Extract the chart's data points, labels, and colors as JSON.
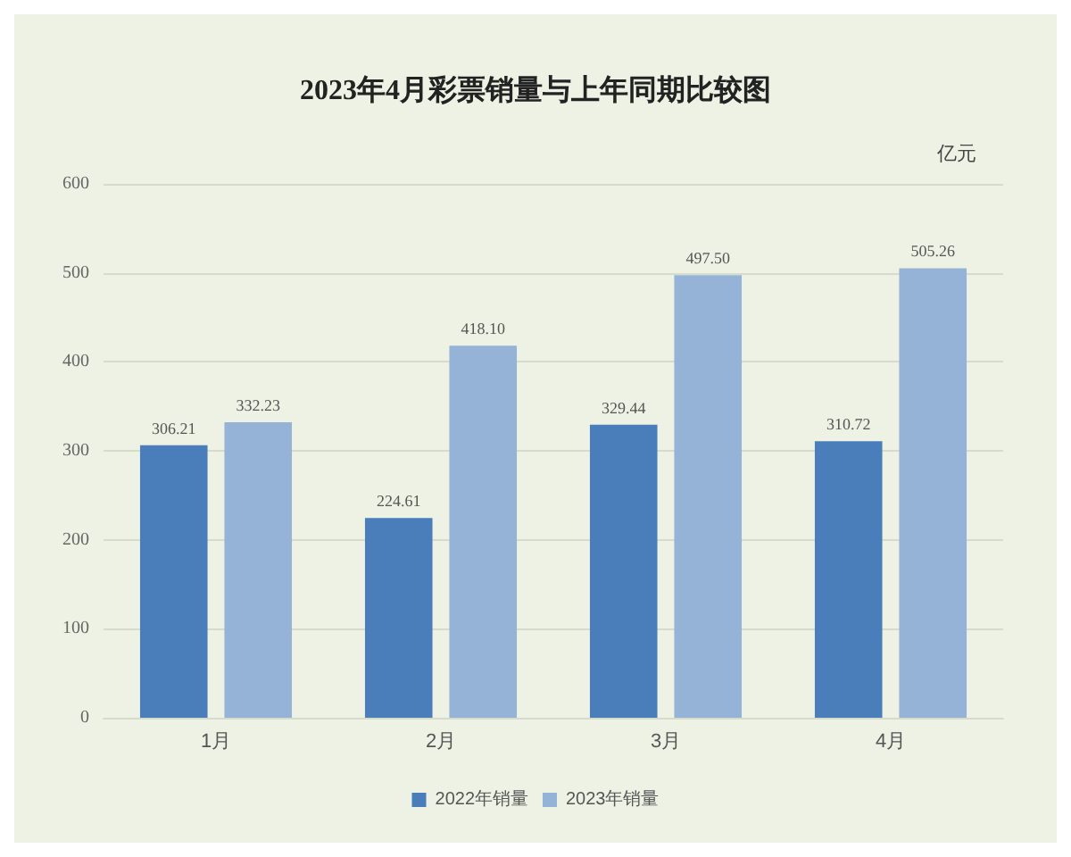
{
  "chart_data": {
    "type": "bar",
    "title": "2023年4月彩票销量与上年同期比较图",
    "ylabel": "亿元",
    "categories": [
      "1月",
      "2月",
      "3月",
      "4月"
    ],
    "series": [
      {
        "name": "2022年销量",
        "color": "#4a7ebb",
        "values": [
          306.21,
          224.61,
          329.44,
          310.72
        ],
        "value_labels": [
          "306.21",
          "224.61",
          "329.44",
          "310.72"
        ]
      },
      {
        "name": "2023年销量",
        "color": "#95b3d7",
        "values": [
          332.23,
          418.1,
          497.5,
          505.26
        ],
        "value_labels": [
          "332.23",
          "418.10",
          "497.50",
          "505.26"
        ]
      }
    ],
    "ylim": [
      0,
      600
    ],
    "yticks": [
      0,
      100,
      200,
      300,
      400,
      500,
      600
    ],
    "grid": "y",
    "legend": "bottom"
  }
}
